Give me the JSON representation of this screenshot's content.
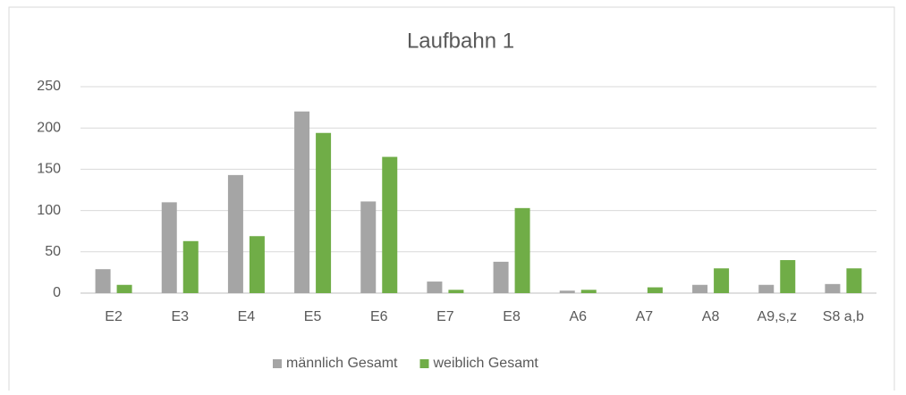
{
  "chart_data": {
    "type": "bar",
    "title": "Laufbahn 1",
    "categories": [
      "E2",
      "E3",
      "E4",
      "E5",
      "E6",
      "E7",
      "E8",
      "A6",
      "A7",
      "A8",
      "A9,s,z",
      "S8 a,b"
    ],
    "series": [
      {
        "name": "männlich Gesamt",
        "color": "#a5a5a5",
        "values": [
          29,
          110,
          143,
          220,
          111,
          14,
          38,
          3,
          0,
          10,
          10,
          11
        ]
      },
      {
        "name": "weiblich Gesamt",
        "color": "#70ad47",
        "values": [
          10,
          63,
          69,
          194,
          165,
          4,
          103,
          4,
          7,
          30,
          40,
          30
        ]
      }
    ],
    "ylim": [
      0,
      250
    ],
    "yticks": [
      0,
      50,
      100,
      150,
      200,
      250
    ],
    "grid": true,
    "legend": "bottom"
  }
}
